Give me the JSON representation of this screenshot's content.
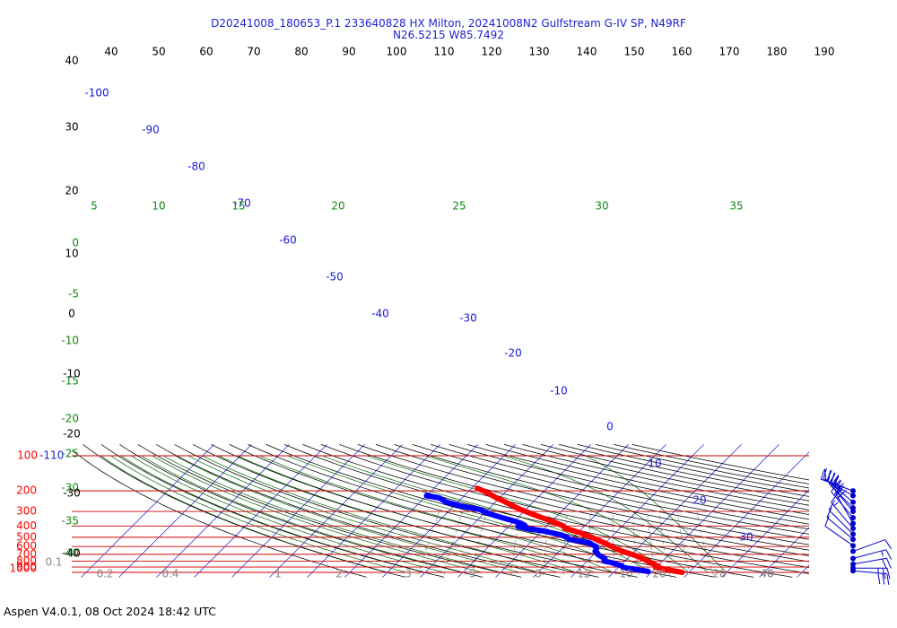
{
  "title_line1": "D20241008_180653_P.1 233640828 HX Milton, 20241008N2 Gulfstream G-IV SP, N49RF",
  "title_line2": "N26.5215 W85.7492",
  "footer": "Aspen V4.0.1, 08 Oct 2024  18:42 UTC",
  "colors": {
    "temperature": "#ff0000",
    "dewpoint": "#0000ff",
    "isobar": "#cc0000",
    "isotherm": "#1a1ad9",
    "dry_adiabat": "#000000",
    "moist_adiabat": "#006600",
    "mixing_ratio": "#777777",
    "pressure_label": "#ff0000",
    "isotherm_label": "#1a1ad9",
    "moist_label": "#118811",
    "dry_label": "#000000",
    "mixing_label": "#888888",
    "wind_barb": "#0000cc"
  },
  "chart_data": {
    "type": "skew-t",
    "xlabel": "",
    "ylabel": "",
    "pressure_axis_labels": [
      {
        "p": 100,
        "text": "100"
      },
      {
        "p": 200,
        "text": "200"
      },
      {
        "p": 300,
        "text": "300"
      },
      {
        "p": 400,
        "text": "400"
      },
      {
        "p": 500,
        "text": "500"
      },
      {
        "p": 600,
        "text": "600"
      },
      {
        "p": 700,
        "text": "700"
      },
      {
        "p": 800,
        "text": "800"
      },
      {
        "p": 900,
        "text": "900"
      },
      {
        "p": 1000,
        "text": "1000"
      }
    ],
    "top_left_label": "-110",
    "top_labels": [
      "40",
      "50",
      "60",
      "70",
      "80",
      "90",
      "100",
      "110",
      "120",
      "130",
      "140",
      "150",
      "160",
      "170",
      "180",
      "190"
    ],
    "isotherm_labels": [
      "-100",
      "-90",
      "-80",
      "-70",
      "-60",
      "-50",
      "-40",
      "-30",
      "-20",
      "-10",
      "0",
      "10",
      "20",
      "30",
      "40"
    ],
    "moist_labels": [
      "0",
      "-5",
      "-10",
      "-15",
      "-20",
      "-25",
      "-30",
      "-35",
      "-40"
    ],
    "moist_top_labels": [
      "5",
      "10",
      "15",
      "20",
      "25",
      "30",
      "35"
    ],
    "dry_left_labels": [
      "40",
      "30",
      "20",
      "10",
      "0",
      "-10",
      "-20",
      "-30",
      "-40"
    ],
    "mixing_labels": [
      "0.1",
      "0.2",
      "0.4",
      "1",
      "2",
      "3",
      "5",
      "8",
      "12",
      "16",
      "20",
      "28",
      "40"
    ],
    "temperature_profile": [
      [
        190,
        -48.5
      ],
      [
        200,
        -46.2
      ],
      [
        210,
        -44.2
      ],
      [
        230,
        -40.8
      ],
      [
        250,
        -37.3
      ],
      [
        270,
        -34.2
      ],
      [
        290,
        -31.2
      ],
      [
        310,
        -28.0
      ],
      [
        330,
        -25.0
      ],
      [
        350,
        -22.0
      ],
      [
        375,
        -18.6
      ],
      [
        400,
        -15.6
      ],
      [
        420,
        -14.6
      ],
      [
        440,
        -11.6
      ],
      [
        460,
        -9.1
      ],
      [
        480,
        -7.0
      ],
      [
        500,
        -5.0
      ],
      [
        530,
        -2.7
      ],
      [
        560,
        -0.1
      ],
      [
        600,
        2.6
      ],
      [
        630,
        4.6
      ],
      [
        660,
        6.8
      ],
      [
        690,
        9.3
      ],
      [
        720,
        11.6
      ],
      [
        760,
        14.0
      ],
      [
        800,
        16.0
      ],
      [
        830,
        17.5
      ],
      [
        860,
        19.1
      ],
      [
        890,
        20.4
      ],
      [
        905,
        19.8
      ],
      [
        925,
        21.6
      ],
      [
        945,
        23.5
      ],
      [
        965,
        24.9
      ],
      [
        985,
        26.9
      ],
      [
        1000,
        28.2
      ]
    ],
    "dewpoint_profile": [
      [
        220,
        -60.0
      ],
      [
        230,
        -56.0
      ],
      [
        250,
        -53.0
      ],
      [
        270,
        -48.0
      ],
      [
        290,
        -42.0
      ],
      [
        305,
        -40.0
      ],
      [
        320,
        -37.5
      ],
      [
        340,
        -34.0
      ],
      [
        360,
        -30.5
      ],
      [
        380,
        -27.5
      ],
      [
        395,
        -26.0
      ],
      [
        405,
        -27.5
      ],
      [
        420,
        -25.0
      ],
      [
        440,
        -20.0
      ],
      [
        460,
        -16.5
      ],
      [
        480,
        -13.5
      ],
      [
        500,
        -11.8
      ],
      [
        520,
        -10.5
      ],
      [
        540,
        -7.0
      ],
      [
        560,
        -4.0
      ],
      [
        580,
        -3.0
      ],
      [
        600,
        -1.5
      ],
      [
        630,
        -0.8
      ],
      [
        660,
        -0.5
      ],
      [
        680,
        0.5
      ],
      [
        700,
        1.0
      ],
      [
        720,
        2.0
      ],
      [
        760,
        4.0
      ],
      [
        780,
        4.2
      ],
      [
        800,
        4.5
      ],
      [
        820,
        6.5
      ],
      [
        850,
        8.5
      ],
      [
        880,
        10.5
      ],
      [
        900,
        11.0
      ],
      [
        920,
        12.5
      ],
      [
        940,
        15.0
      ],
      [
        960,
        16.5
      ],
      [
        975,
        18.5
      ],
      [
        985,
        19.0
      ]
    ],
    "wind_barbs": [
      {
        "p": 200,
        "dir": 290,
        "kt": 55
      },
      {
        "p": 220,
        "dir": 300,
        "kt": 40
      },
      {
        "p": 250,
        "dir": 310,
        "kt": 35
      },
      {
        "p": 280,
        "dir": 315,
        "kt": 35
      },
      {
        "p": 300,
        "dir": 320,
        "kt": 35
      },
      {
        "p": 340,
        "dir": 320,
        "kt": 25
      },
      {
        "p": 380,
        "dir": 330,
        "kt": 20
      },
      {
        "p": 420,
        "dir": 320,
        "kt": 15
      },
      {
        "p": 470,
        "dir": 315,
        "kt": 10
      },
      {
        "p": 520,
        "dir": 310,
        "kt": 10
      },
      {
        "p": 590,
        "dir": 305,
        "kt": 10
      },
      {
        "p": 660,
        "dir": 70,
        "kt": 10
      },
      {
        "p": 760,
        "dir": 75,
        "kt": 15
      },
      {
        "p": 850,
        "dir": 80,
        "kt": 20
      },
      {
        "p": 920,
        "dir": 90,
        "kt": 25
      },
      {
        "p": 970,
        "dir": 95,
        "kt": 30
      }
    ],
    "ylim": [
      100,
      1000
    ],
    "grid": true
  }
}
